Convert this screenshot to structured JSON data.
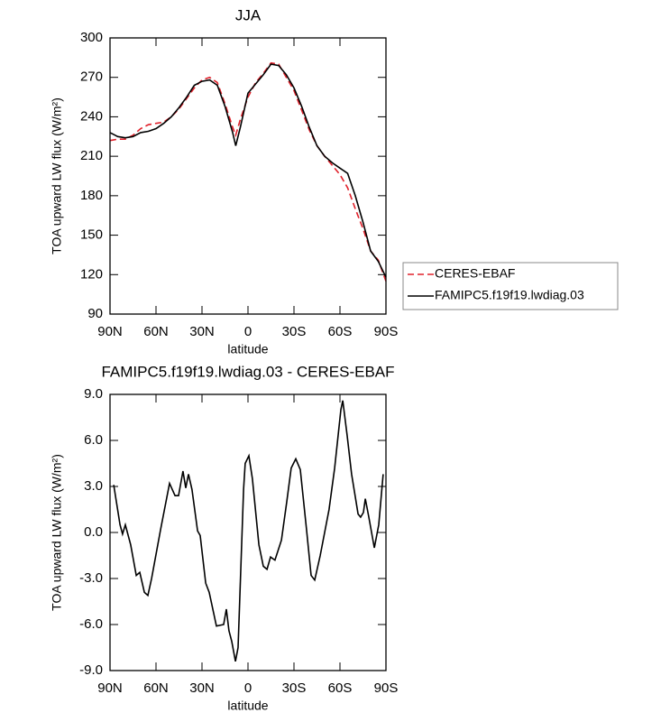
{
  "chart_data": [
    {
      "type": "line",
      "title": "JJA",
      "xlabel": "latitude",
      "ylabel": "TOA upward LW flux (W/m²)",
      "x": [
        90,
        85,
        80,
        75,
        70,
        65,
        60,
        55,
        50,
        45,
        40,
        35,
        30,
        25,
        20,
        15,
        10,
        8,
        5,
        0,
        -5,
        -10,
        -15,
        -20,
        -25,
        -30,
        -35,
        -40,
        -45,
        -50,
        -55,
        -60,
        -65,
        -70,
        -75,
        -80,
        -85,
        -90
      ],
      "series": [
        {
          "name": "CERES-EBAF",
          "color": "#e0202a",
          "style": "dashed",
          "values": [
            222,
            223,
            223,
            226,
            231,
            234,
            235,
            236,
            240,
            246,
            254,
            262,
            268,
            270,
            266,
            250,
            232,
            226,
            238,
            255,
            266,
            273,
            281,
            280,
            270,
            260,
            245,
            230,
            218,
            210,
            203,
            196,
            186,
            170,
            155,
            138,
            131,
            115
          ]
        },
        {
          "name": "FAMIPC5.f19f19.lwdiag.03",
          "color": "#000000",
          "style": "solid",
          "values": [
            228,
            225,
            224,
            225,
            228,
            229,
            231,
            235,
            240,
            247,
            255,
            264,
            267,
            268,
            264,
            248,
            228,
            218,
            232,
            258,
            265,
            272,
            280,
            279,
            272,
            262,
            248,
            232,
            218,
            210,
            205,
            201,
            197,
            180,
            160,
            138,
            130,
            118
          ]
        }
      ],
      "xlim": [
        90,
        -90
      ],
      "xticks": [
        {
          "value": 90,
          "label": "90N"
        },
        {
          "value": 60,
          "label": "60N"
        },
        {
          "value": 30,
          "label": "30N"
        },
        0,
        {
          "value": -30,
          "label": "30S"
        },
        {
          "value": -60,
          "label": "60S"
        },
        {
          "value": -90,
          "label": "90S"
        }
      ],
      "ylim": [
        90,
        300
      ],
      "yticks": [
        90,
        120,
        150,
        180,
        210,
        240,
        270,
        300
      ],
      "legend": "right"
    },
    {
      "type": "line",
      "title": "FAMIPC5.f19f19.lwdiag.03 - CERES-EBAF",
      "xlabel": "latitude",
      "ylabel": "TOA upward LW flux (W/m²)",
      "x": [
        87.6,
        83.5,
        81.8,
        80,
        76.5,
        72.9,
        70.6,
        67.6,
        65.3,
        62.9,
        57,
        51.2,
        47.6,
        45.3,
        42.4,
        40.6,
        38.8,
        36.5,
        32.9,
        31.2,
        27.6,
        25.3,
        20.6,
        15.9,
        14.1,
        12.4,
        10.6,
        8.2,
        6.5,
        2.9,
        1.8,
        -0.6,
        -2.9,
        -7.1,
        -10,
        -12.4,
        -14.7,
        -17.6,
        -21.8,
        -25.3,
        -28.2,
        -31.2,
        -34.1,
        -38.2,
        -41.2,
        -43.5,
        -47.1,
        -52.9,
        -56.5,
        -60.6,
        -61.8,
        -64.7,
        -67.6,
        -71.8,
        -73.5,
        -75.3,
        -76.5,
        -78.8,
        -82.4,
        -85.3,
        -88.2
      ],
      "values": [
        3.1,
        0.5,
        -0.1,
        0.5,
        -0.8,
        -2.8,
        -2.6,
        -3.9,
        -4.1,
        -3.0,
        0.2,
        3.2,
        2.4,
        2.4,
        4.0,
        2.9,
        3.8,
        2.8,
        0.1,
        -0.2,
        -3.3,
        -3.9,
        -6.1,
        -6.0,
        -5.0,
        -6.4,
        -7.1,
        -8.4,
        -7.5,
        2.8,
        4.5,
        5.0,
        3.5,
        -0.8,
        -2.2,
        -2.4,
        -1.6,
        -1.8,
        -0.5,
        2.0,
        4.2,
        4.8,
        4.1,
        0.2,
        -2.8,
        -3.1,
        -1.5,
        1.5,
        4.2,
        8.0,
        8.6,
        6.3,
        3.8,
        1.2,
        1.0,
        1.3,
        2.2,
        1.0,
        -1.0,
        0.5,
        3.8
      ],
      "color": "#000000",
      "xlim": [
        90,
        -90
      ],
      "xticks": [
        {
          "value": 90,
          "label": "90N"
        },
        {
          "value": 60,
          "label": "60N"
        },
        {
          "value": 30,
          "label": "30N"
        },
        0,
        {
          "value": -30,
          "label": "30S"
        },
        {
          "value": -60,
          "label": "60S"
        },
        {
          "value": -90,
          "label": "90S"
        }
      ],
      "ylim": [
        -9,
        9
      ],
      "yticks": [
        {
          "value": -9,
          "label": "-9.0"
        },
        {
          "value": -6,
          "label": "-6.0"
        },
        {
          "value": -3,
          "label": "-3.0"
        },
        {
          "value": 0,
          "label": "0.0"
        },
        {
          "value": 3,
          "label": "3.0"
        },
        {
          "value": 6,
          "label": "6.0"
        },
        {
          "value": 9,
          "label": "9.0"
        }
      ]
    }
  ]
}
